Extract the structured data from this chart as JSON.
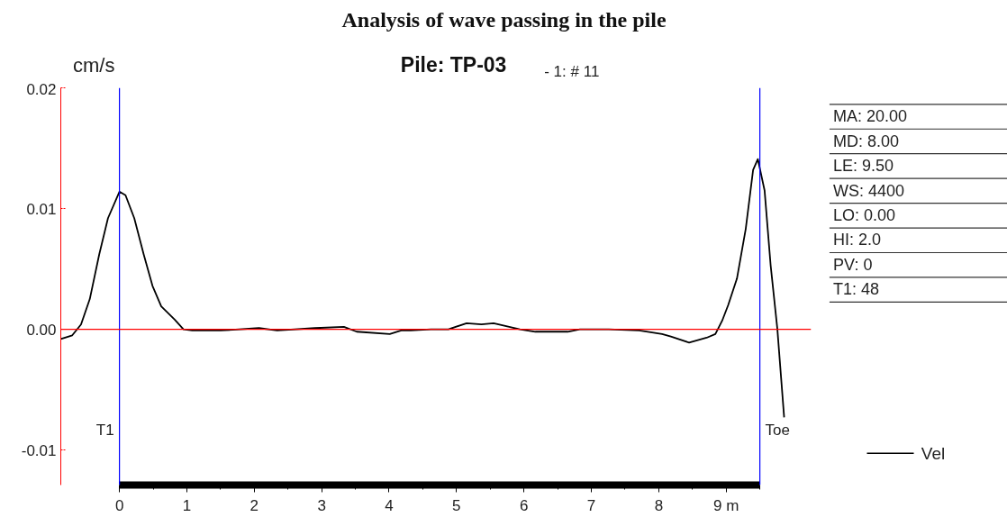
{
  "chart_data": {
    "type": "line",
    "title": "Analysis of wave passing in the pile",
    "subtitle": "Pile: TP-03",
    "ylabel": "cm/s",
    "annotations": [
      "- 1: # 11",
      "MA:  20.00",
      "MD:   8.00",
      "LE:   9.50",
      "WS:   4400",
      "LO:   0.00",
      "HI:    2.0",
      "PV:      0",
      "T1:     48"
    ],
    "x": [
      -0.87,
      -0.7,
      -0.57,
      -0.44,
      -0.3,
      -0.17,
      0,
      0.09,
      0.22,
      0.36,
      0.49,
      0.62,
      0.82,
      0.95,
      1.08,
      1.5,
      2.07,
      2.34,
      2.9,
      3.33,
      3.52,
      4.01,
      4.18,
      4.32,
      4.62,
      4.88,
      5.15,
      5.37,
      5.55,
      5.94,
      6.17,
      6.65,
      6.83,
      7.26,
      7.71,
      8.05,
      8.18,
      8.45,
      8.71,
      8.84,
      8.94,
      9.03,
      9.16,
      9.29,
      9.4,
      9.47,
      9.57,
      9.66,
      9.76,
      9.86
    ],
    "series": [
      {
        "name": "Vel",
        "color": "#000000",
        "values": [
          -0.0008,
          -0.0005,
          0.0004,
          0.0025,
          0.0062,
          0.0092,
          0.0114,
          0.0111,
          0.0092,
          0.0062,
          0.0036,
          0.0019,
          0.0008,
          0.0,
          -0.0001,
          -0.0001,
          0.0001,
          -0.0001,
          0.0001,
          0.0002,
          -0.0002,
          -0.0004,
          -0.0001,
          -0.0001,
          0.0,
          0.0,
          0.0005,
          0.0004,
          0.0005,
          0.0,
          -0.0002,
          -0.0002,
          0.0,
          0.0,
          -0.0001,
          -0.0004,
          -0.0006,
          -0.0011,
          -0.0007,
          -0.0004,
          0.0007,
          0.002,
          0.0042,
          0.0083,
          0.0132,
          0.0141,
          0.0115,
          0.0053,
          0.0,
          -0.0073
        ]
      }
    ],
    "xlim": [
      -0.87,
      10.26
    ],
    "ylim": [
      -0.0129,
      0.02
    ],
    "xticks": [
      0,
      1,
      2,
      3,
      4,
      5,
      6,
      7,
      8,
      {
        "value": 9,
        "label": "9 m"
      }
    ],
    "yticks": [
      {
        "value": -0.01,
        "label": "-0.01"
      },
      {
        "value": 0,
        "label": "0.00"
      },
      0.01,
      0.02
    ],
    "ref_lines": [
      {
        "axis": "x",
        "value": 0,
        "label": "T1",
        "color": "#0000ff"
      },
      {
        "axis": "x",
        "value": 9.5,
        "label": "Toe",
        "color": "#0000ff"
      },
      {
        "axis": "y",
        "value": 0,
        "color": "#ff0000"
      }
    ],
    "grid": false,
    "legend": "right",
    "line_style": "solid"
  }
}
